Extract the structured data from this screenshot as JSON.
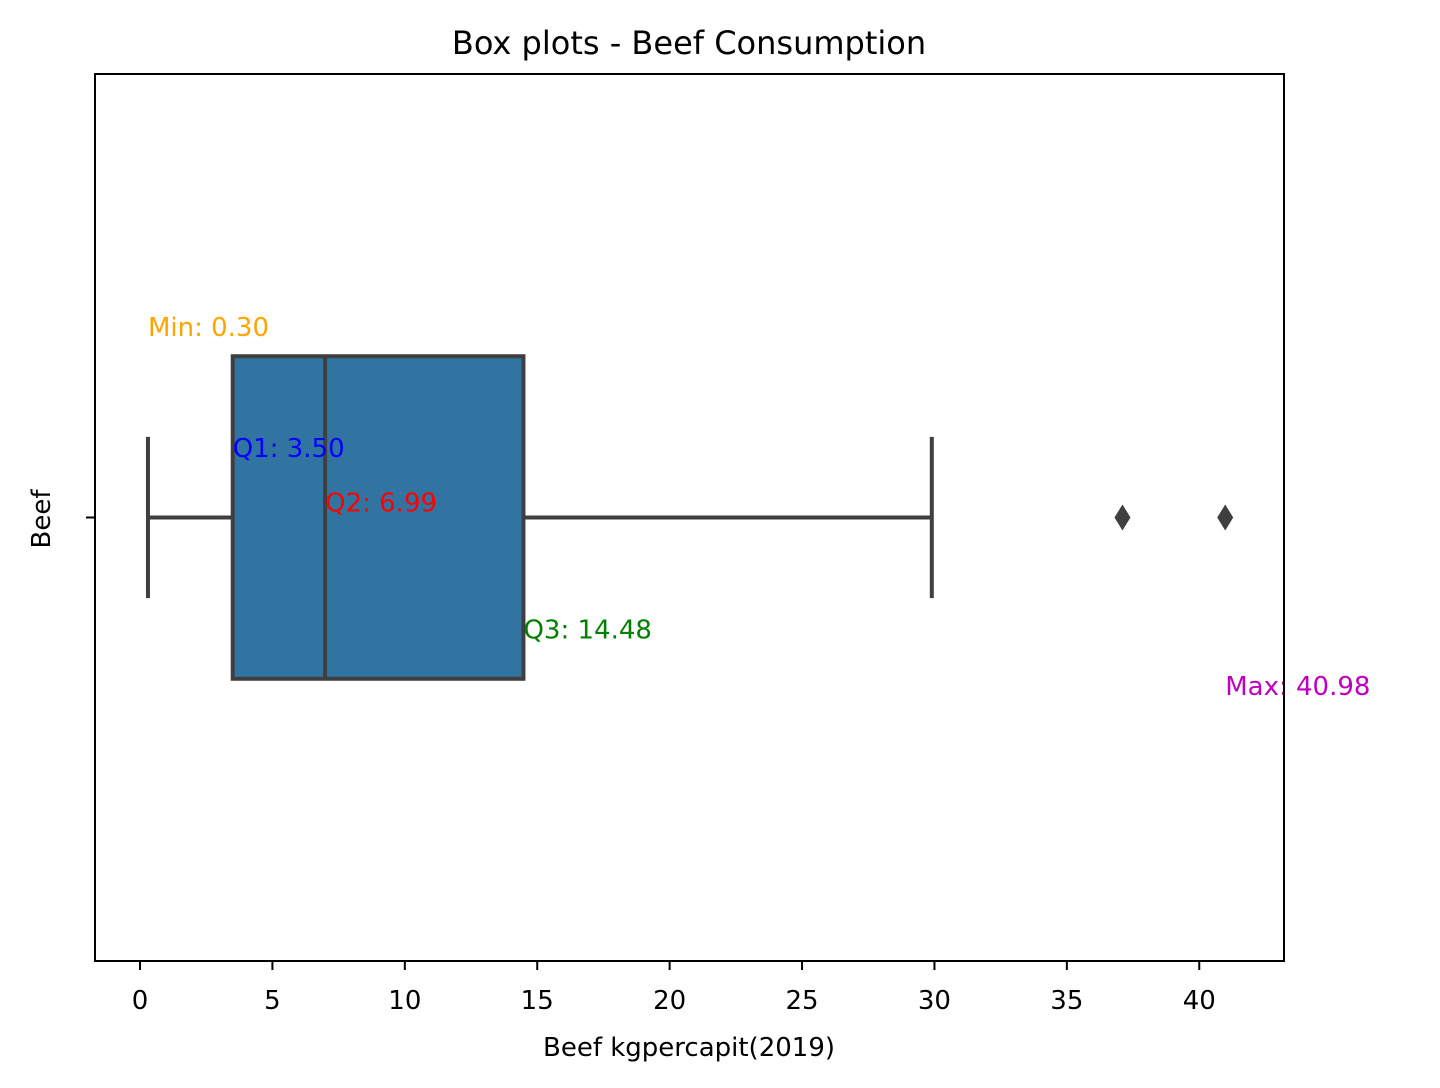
{
  "chart_data": {
    "type": "box",
    "title": "Box plots - Beef Consumption",
    "xlabel": "Beef kgpercapit(2019)",
    "ylabel": "Beef",
    "category": "Beef",
    "xlim": [
      -1.7,
      43.2
    ],
    "xticks": [
      0,
      5,
      10,
      15,
      20,
      25,
      30,
      35,
      40
    ],
    "xtick_labels": [
      "0",
      "5",
      "10",
      "15",
      "20",
      "25",
      "30",
      "35",
      "40"
    ],
    "box": {
      "whisker_low": 0.3,
      "q1": 3.5,
      "median": 6.99,
      "q3": 14.48,
      "whisker_high": 29.9,
      "outliers": [
        37.1,
        40.98
      ],
      "fill_color": "#3274a1",
      "line_color": "#3f3f3f"
    },
    "annotations": [
      {
        "text": "Min: 0.30",
        "x": 0.3,
        "y": -0.45,
        "color": "#ffa500"
      },
      {
        "text": "Q1: 3.50",
        "x": 3.5,
        "y": -0.15,
        "color": "#0000ff"
      },
      {
        "text": "Q2: 6.99",
        "x": 6.99,
        "y": -0.015,
        "color": "#ff0000"
      },
      {
        "text": "Q3: 14.48",
        "x": 14.48,
        "y": 0.3,
        "color": "#008000"
      },
      {
        "text": "Max: 40.98",
        "x": 40.98,
        "y": 0.44,
        "color": "#bf00bf"
      }
    ],
    "ylim": [
      -1.1,
      1.1
    ],
    "grid": false,
    "legend": "none"
  }
}
